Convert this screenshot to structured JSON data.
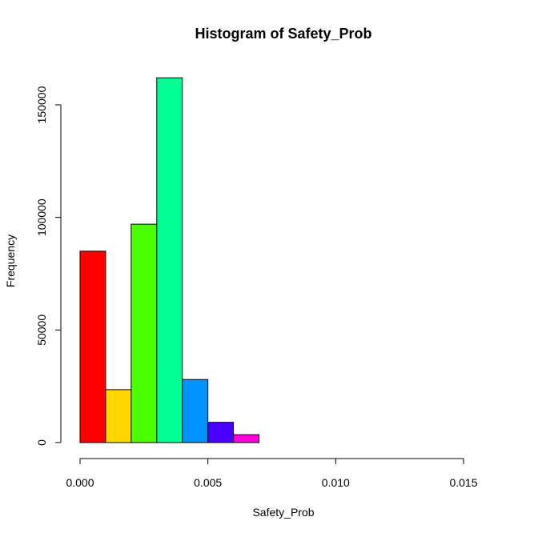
{
  "chart_data": {
    "type": "bar",
    "title": "Histogram of Safety_Prob",
    "xlabel": "Safety_Prob",
    "ylabel": "Frequency",
    "xlim": [
      0,
      0.016
    ],
    "ylim": [
      0,
      165000
    ],
    "bin_width": 0.001,
    "bins": [
      {
        "x0": 0.0,
        "x1": 0.001,
        "value": 85000,
        "color": "#FF0000"
      },
      {
        "x0": 0.001,
        "x1": 0.002,
        "value": 23500,
        "color": "#FFD700"
      },
      {
        "x0": 0.002,
        "x1": 0.003,
        "value": 97000,
        "color": "#49FF00"
      },
      {
        "x0": 0.003,
        "x1": 0.004,
        "value": 162000,
        "color": "#00FF92"
      },
      {
        "x0": 0.004,
        "x1": 0.005,
        "value": 28000,
        "color": "#0092FF"
      },
      {
        "x0": 0.005,
        "x1": 0.006,
        "value": 9000,
        "color": "#4900FF"
      },
      {
        "x0": 0.006,
        "x1": 0.007,
        "value": 3500,
        "color": "#FF00DB"
      },
      {
        "x0": 0.007,
        "x1": 0.008,
        "value": 0,
        "color": "#FF0000"
      },
      {
        "x0": 0.008,
        "x1": 0.009,
        "value": 0,
        "color": "#FFD700"
      },
      {
        "x0": 0.009,
        "x1": 0.01,
        "value": 0,
        "color": "#49FF00"
      },
      {
        "x0": 0.01,
        "x1": 0.011,
        "value": 0,
        "color": "#00FF92"
      },
      {
        "x0": 0.011,
        "x1": 0.012,
        "value": 0,
        "color": "#0092FF"
      },
      {
        "x0": 0.012,
        "x1": 0.013,
        "value": 0,
        "color": "#4900FF"
      },
      {
        "x0": 0.013,
        "x1": 0.014,
        "value": 0,
        "color": "#FF00DB"
      },
      {
        "x0": 0.014,
        "x1": 0.015,
        "value": 0,
        "color": "#FF0000"
      },
      {
        "x0": 0.015,
        "x1": 0.016,
        "value": 0,
        "color": "#FFD700"
      }
    ],
    "x_ticks": [
      {
        "value": 0.0,
        "label": "0.000"
      },
      {
        "value": 0.005,
        "label": "0.005"
      },
      {
        "value": 0.01,
        "label": "0.010"
      },
      {
        "value": 0.015,
        "label": "0.015"
      }
    ],
    "y_ticks": [
      {
        "value": 0,
        "label": "0"
      },
      {
        "value": 50000,
        "label": "50000"
      },
      {
        "value": 100000,
        "label": "100000"
      },
      {
        "value": 150000,
        "label": "150000"
      }
    ],
    "grid": false,
    "legend": "none"
  }
}
